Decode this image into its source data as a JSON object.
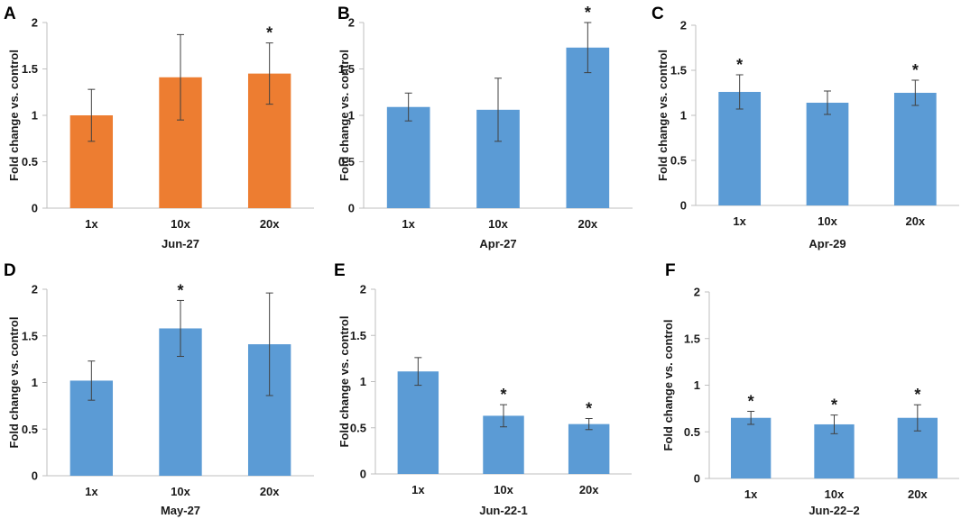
{
  "figure": {
    "colors": {
      "orange": "#ED7D31",
      "blue": "#5B9BD5",
      "axis": "#bfbfbf",
      "errorbar": "#404040"
    }
  },
  "chart_data": [
    {
      "panel": "A",
      "type": "bar",
      "color": "orange",
      "categories": [
        "1x",
        "10x",
        "20x"
      ],
      "values": [
        1.0,
        1.41,
        1.45
      ],
      "errors": [
        0.28,
        0.46,
        0.33
      ],
      "significant": [
        false,
        false,
        true
      ],
      "significance_marker": "*",
      "xlabel": "Jun-27",
      "ylabel": "Fold change vs. control",
      "ylim": [
        0,
        2
      ],
      "yticks": [
        "0",
        "0.5",
        "1",
        "1.5",
        "2"
      ]
    },
    {
      "panel": "B",
      "type": "bar",
      "color": "blue",
      "categories": [
        "1x",
        "10x",
        "20x"
      ],
      "values": [
        1.09,
        1.06,
        1.73
      ],
      "errors": [
        0.15,
        0.34,
        0.27
      ],
      "significant": [
        false,
        false,
        true
      ],
      "significance_marker": "*",
      "xlabel": "Apr-27",
      "ylabel": "Fold change vs. control",
      "ylim": [
        0,
        2
      ],
      "yticks": [
        "0",
        "0.5",
        "1",
        "1.5",
        "2"
      ]
    },
    {
      "panel": "C",
      "type": "bar",
      "color": "blue",
      "categories": [
        "1x",
        "10x",
        "20x"
      ],
      "values": [
        1.26,
        1.14,
        1.25
      ],
      "errors": [
        0.19,
        0.13,
        0.14
      ],
      "significant": [
        true,
        false,
        true
      ],
      "significance_marker": "*",
      "xlabel": "Apr-29",
      "ylabel": "Fold change vs. control",
      "ylim": [
        0,
        2
      ],
      "yticks": [
        "0",
        "0.5",
        "1",
        "1.5",
        "2"
      ]
    },
    {
      "panel": "D",
      "type": "bar",
      "color": "blue",
      "categories": [
        "1x",
        "10x",
        "20x"
      ],
      "values": [
        1.02,
        1.58,
        1.41
      ],
      "errors": [
        0.21,
        0.3,
        0.55
      ],
      "significant": [
        false,
        true,
        false
      ],
      "significance_marker": "*",
      "xlabel": "May-27",
      "ylabel": "Fold change vs. control",
      "ylim": [
        0,
        2
      ],
      "yticks": [
        "0",
        "0.5",
        "1",
        "1.5",
        "2"
      ]
    },
    {
      "panel": "E",
      "type": "bar",
      "color": "blue",
      "categories": [
        "1x",
        "10x",
        "20x"
      ],
      "values": [
        1.11,
        0.63,
        0.54
      ],
      "errors": [
        0.15,
        0.12,
        0.06
      ],
      "significant": [
        false,
        true,
        true
      ],
      "significance_marker": "*",
      "xlabel": "Jun-22-1",
      "ylabel": "Fold change vs. control",
      "ylim": [
        0,
        2
      ],
      "yticks": [
        "0",
        "0.5",
        "1",
        "1.5",
        "2"
      ]
    },
    {
      "panel": "F",
      "type": "bar",
      "color": "blue",
      "categories": [
        "1x",
        "10x",
        "20x"
      ],
      "values": [
        0.65,
        0.58,
        0.65
      ],
      "errors": [
        0.07,
        0.1,
        0.14
      ],
      "significant": [
        true,
        true,
        true
      ],
      "significance_marker": "*",
      "xlabel": "Jun-22–2",
      "ylabel": "Fold change vs. control",
      "ylim": [
        0,
        2
      ],
      "yticks": [
        "0",
        "0.5",
        "1",
        "1.5",
        "2"
      ]
    }
  ]
}
